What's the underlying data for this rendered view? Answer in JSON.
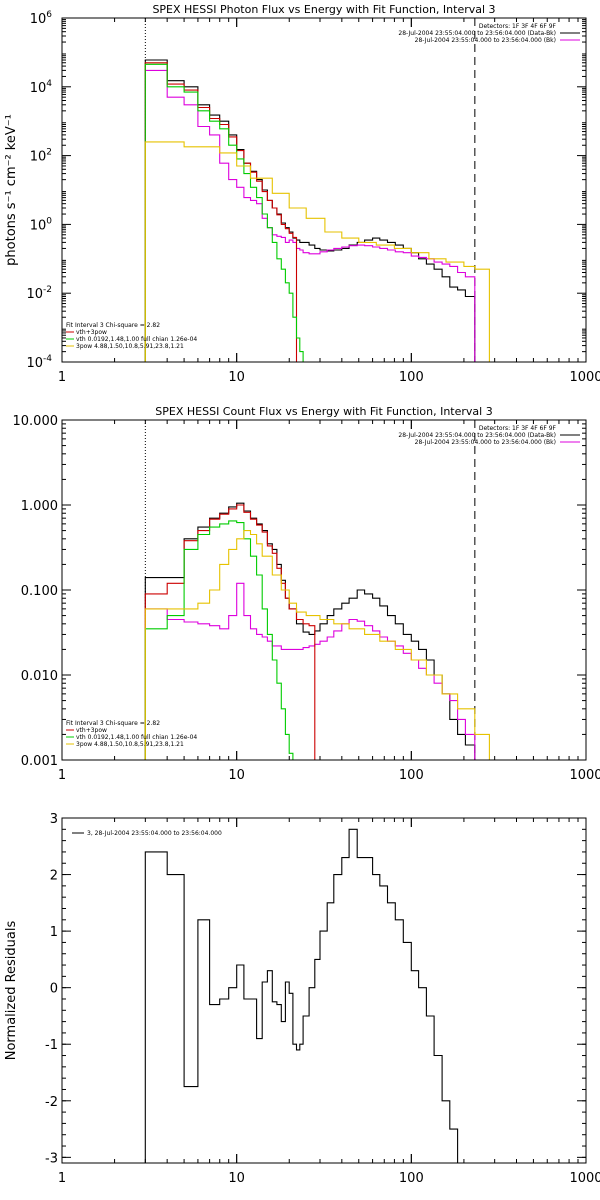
{
  "chart_data": [
    {
      "id": "photon",
      "type": "line",
      "title": "SPEX HESSI Photon Flux vs Energy with Fit Function, Interval 3",
      "xlabel": "",
      "ylabel": "photons s⁻¹ cm⁻² keV⁻¹",
      "xscale": "log",
      "yscale": "log",
      "xlim": [
        1,
        1000
      ],
      "ylim": [
        0.0001,
        1000000
      ],
      "xticks": [
        1,
        10,
        100,
        1000
      ],
      "xticklabels": [
        "1",
        "10",
        "100",
        "1000"
      ],
      "yticks": [
        0.0001,
        0.01,
        1,
        100,
        10000,
        1000000
      ],
      "yticklabels": [
        [
          "10",
          "-4"
        ],
        [
          "10",
          "-2"
        ],
        [
          "10",
          "0"
        ],
        [
          "10",
          "2"
        ],
        [
          "10",
          "4"
        ],
        [
          "10",
          "6"
        ]
      ],
      "vlines": [
        3,
        231
      ],
      "legend_top": [
        "Detectors: 1F 3F 4F 6F 9F",
        "28-Jul-2004 23:55:04.000 to 23:56:04.000 (Data-Bk)",
        "28-Jul-2004 23:55:04.000 to 23:56:04.000 (Bk)"
      ],
      "legend_bottom": [
        "Fit Interval 3   Chi-square = 2.82",
        "vth+3pow",
        "vth 0.0192,1.48,1.00  full chian 1.26e-04",
        "3pow 4.88,1.50,10.8,5.91,23.8,1.21"
      ],
      "series": [
        {
          "name": "Data-Bk",
          "color": "#000000",
          "edges": [
            3,
            4,
            5,
            6,
            7,
            8,
            9,
            10,
            11,
            12,
            13,
            14,
            15,
            16,
            17,
            18,
            19,
            20,
            21,
            22,
            23,
            24,
            26,
            28,
            30,
            33,
            36,
            40,
            44,
            49,
            54,
            60,
            66,
            73,
            81,
            90,
            100,
            110,
            122,
            135,
            150,
            166,
            184,
            204,
            231
          ],
          "values": [
            60000,
            15000,
            10000,
            3000,
            1500,
            1000,
            400,
            150,
            60,
            35,
            20,
            10,
            5,
            3,
            2,
            1.1,
            0.8,
            0.6,
            0.4,
            0.35,
            0.3,
            0.3,
            0.25,
            0.2,
            0.18,
            0.17,
            0.18,
            0.2,
            0.25,
            0.3,
            0.35,
            0.4,
            0.35,
            0.3,
            0.25,
            0.2,
            0.15,
            0.1,
            0.07,
            0.05,
            0.03,
            0.015,
            0.0125,
            0.008
          ]
        },
        {
          "name": "Bk",
          "color": "#dd00dd",
          "edges": [
            3,
            4,
            5,
            6,
            7,
            8,
            9,
            10,
            11,
            12,
            13,
            14,
            15,
            16,
            17,
            18,
            19,
            20,
            21,
            22,
            23,
            24,
            26,
            28,
            30,
            33,
            36,
            40,
            44,
            49,
            54,
            60,
            66,
            73,
            81,
            90,
            100,
            110,
            122,
            135,
            150,
            166,
            184,
            204,
            231
          ],
          "values": [
            30000,
            5000,
            3000,
            700,
            400,
            60,
            20,
            12,
            6,
            5,
            4,
            1.5,
            0.8,
            0.5,
            0.45,
            0.42,
            0.3,
            0.35,
            0.3,
            0.2,
            0.18,
            0.15,
            0.14,
            0.14,
            0.16,
            0.18,
            0.2,
            0.22,
            0.24,
            0.25,
            0.24,
            0.22,
            0.2,
            0.18,
            0.16,
            0.15,
            0.12,
            0.11,
            0.1,
            0.08,
            0.07,
            0.06,
            0.04,
            0.03
          ]
        },
        {
          "name": "vth+3pow",
          "color": "#cc0000",
          "edges": [
            3,
            4,
            5,
            6,
            7,
            8,
            9,
            10,
            11,
            12,
            13,
            14,
            15,
            16,
            17,
            18,
            19,
            20,
            21,
            22
          ],
          "values": [
            50000,
            12000,
            8000,
            2500,
            1200,
            800,
            350,
            140,
            60,
            33,
            18,
            9,
            5,
            3,
            1.9,
            1,
            0.75,
            0.55,
            0.42
          ]
        },
        {
          "name": "vth",
          "color": "#00cc00",
          "edges": [
            3,
            4,
            5,
            6,
            7,
            8,
            9,
            10,
            11,
            12,
            13,
            14,
            15,
            16,
            17,
            18,
            19,
            20,
            21,
            22,
            23,
            24,
            26,
            28
          ],
          "values": [
            45000,
            10000,
            7000,
            2000,
            1000,
            600,
            200,
            80,
            30,
            12,
            6,
            2,
            0.8,
            0.3,
            0.1,
            0.05,
            0.02,
            0.01,
            0.002,
            0.0005,
            0.0002,
            8e-05,
            1e-05
          ]
        },
        {
          "name": "3pow",
          "color": "#e6c200",
          "edges": [
            3,
            5,
            8,
            10,
            12,
            16,
            20,
            25,
            32,
            40,
            50,
            63,
            80,
            100,
            126,
            158,
            200,
            232,
            280
          ],
          "values": [
            250,
            180,
            120,
            50,
            22,
            8,
            3,
            1.5,
            0.6,
            0.4,
            0.3,
            0.25,
            0.2,
            0.15,
            0.1,
            0.08,
            0.06,
            0.05
          ]
        }
      ]
    },
    {
      "id": "count",
      "type": "line",
      "title": "SPEX HESSI Count Flux vs Energy with Fit Function, Interval 3",
      "xlabel": "",
      "ylabel": "",
      "xscale": "log",
      "yscale": "log",
      "xlim": [
        1,
        1000
      ],
      "ylim": [
        0.001,
        10
      ],
      "xticks": [
        1,
        10,
        100,
        1000
      ],
      "xticklabels": [
        "1",
        "10",
        "100",
        "1000"
      ],
      "yticks": [
        0.001,
        0.01,
        0.1,
        1,
        10
      ],
      "yticklabels": [
        [
          "0.001"
        ],
        [
          "0.010"
        ],
        [
          "0.100"
        ],
        [
          "1.000"
        ],
        [
          "10.000"
        ]
      ],
      "vlines": [
        3,
        231
      ],
      "legend_top": [
        "Detectors: 1F 3F 4F 6F 9F",
        "28-Jul-2004 23:55:04.000 to 23:56:04.000 (Data-Bk)",
        "28-Jul-2004 23:55:04.000 to 23:56:04.000 (Bk)"
      ],
      "legend_bottom": [
        "Fit Interval 3   Chi-square = 2.82",
        "vth+3pow",
        "vth 0.0192,1.48,1.00  full chian 1.26e-04",
        "3pow 4.88,1.50,10.8,5.91,23.8,1.21"
      ],
      "series": [
        {
          "name": "Data-Bk",
          "color": "#000000",
          "edges": [
            3,
            4,
            5,
            6,
            7,
            8,
            9,
            10,
            11,
            12,
            13,
            14,
            15,
            16,
            17,
            18,
            19,
            20,
            22,
            24,
            26,
            28,
            30,
            33,
            36,
            40,
            44,
            49,
            54,
            60,
            66,
            73,
            81,
            90,
            100,
            110,
            122,
            135,
            150,
            166,
            184,
            204,
            231
          ],
          "values": [
            0.14,
            0.14,
            0.4,
            0.55,
            0.7,
            0.8,
            0.95,
            1.05,
            0.85,
            0.7,
            0.6,
            0.5,
            0.35,
            0.3,
            0.2,
            0.13,
            0.08,
            0.06,
            0.04,
            0.032,
            0.03,
            0.033,
            0.04,
            0.05,
            0.06,
            0.07,
            0.08,
            0.1,
            0.09,
            0.08,
            0.065,
            0.05,
            0.04,
            0.03,
            0.025,
            0.02,
            0.015,
            0.01,
            0.006,
            0.003,
            0.002,
            0.0015
          ]
        },
        {
          "name": "Bk",
          "color": "#dd00dd",
          "edges": [
            3,
            4,
            5,
            6,
            7,
            8,
            9,
            10,
            11,
            12,
            13,
            14,
            15,
            16,
            18,
            20,
            22,
            24,
            26,
            28,
            30,
            33,
            36,
            40,
            44,
            49,
            54,
            60,
            66,
            73,
            81,
            90,
            100,
            110,
            122,
            135,
            150,
            166,
            184,
            204,
            231
          ],
          "values": [
            0.06,
            0.045,
            0.042,
            0.04,
            0.038,
            0.035,
            0.05,
            0.12,
            0.05,
            0.035,
            0.03,
            0.028,
            0.025,
            0.022,
            0.02,
            0.02,
            0.02,
            0.021,
            0.022,
            0.023,
            0.025,
            0.028,
            0.033,
            0.04,
            0.045,
            0.043,
            0.038,
            0.033,
            0.028,
            0.025,
            0.022,
            0.018,
            0.015,
            0.012,
            0.01,
            0.008,
            0.006,
            0.005,
            0.003,
            0.002
          ]
        },
        {
          "name": "vth+3pow",
          "color": "#cc0000",
          "edges": [
            3,
            4,
            5,
            6,
            7,
            8,
            9,
            10,
            11,
            12,
            13,
            14,
            15,
            16,
            17,
            18,
            19,
            20,
            22,
            24,
            26,
            28
          ],
          "values": [
            0.09,
            0.12,
            0.38,
            0.5,
            0.68,
            0.78,
            0.9,
            1.0,
            0.82,
            0.68,
            0.58,
            0.48,
            0.33,
            0.27,
            0.18,
            0.12,
            0.08,
            0.06,
            0.045,
            0.04,
            0.038
          ]
        },
        {
          "name": "vth",
          "color": "#00cc00",
          "edges": [
            3,
            4,
            5,
            6,
            7,
            8,
            9,
            10,
            11,
            12,
            13,
            14,
            15,
            16,
            17,
            18,
            19,
            20,
            21,
            22,
            23
          ],
          "values": [
            0.035,
            0.05,
            0.3,
            0.45,
            0.55,
            0.6,
            0.65,
            0.62,
            0.4,
            0.25,
            0.15,
            0.06,
            0.03,
            0.015,
            0.008,
            0.004,
            0.002,
            0.0012,
            0.0009,
            0.0006
          ]
        },
        {
          "name": "3pow",
          "color": "#e6c200",
          "edges": [
            3,
            5,
            6,
            7,
            8,
            9,
            10,
            11,
            12,
            13,
            14,
            16,
            18,
            20,
            22,
            25,
            30,
            36,
            44,
            54,
            66,
            81,
            100,
            122,
            150,
            184,
            231,
            280
          ],
          "values": [
            0.06,
            0.06,
            0.07,
            0.1,
            0.2,
            0.3,
            0.4,
            0.5,
            0.45,
            0.35,
            0.25,
            0.15,
            0.1,
            0.07,
            0.055,
            0.05,
            0.045,
            0.04,
            0.035,
            0.03,
            0.025,
            0.02,
            0.015,
            0.01,
            0.006,
            0.004,
            0.002
          ]
        }
      ]
    },
    {
      "id": "resid",
      "type": "line",
      "title": "",
      "xlabel": "",
      "ylabel": "Normalized Residuals",
      "xscale": "log",
      "yscale": "linear",
      "xlim": [
        1,
        1000
      ],
      "ylim": [
        -3.1,
        3
      ],
      "xticks": [
        1,
        10,
        100,
        1000
      ],
      "xticklabels": [
        "1",
        "10",
        "100",
        "1000"
      ],
      "yticks": [
        -3,
        -2,
        -1,
        0,
        1,
        2,
        3
      ],
      "yticklabels": [
        [
          "-3"
        ],
        [
          "-2"
        ],
        [
          "-1"
        ],
        [
          "0"
        ],
        [
          "1"
        ],
        [
          "2"
        ],
        [
          "3"
        ]
      ],
      "vlines": [],
      "legend_top": [
        "3, 28-Jul-2004 23:55:04.000 to 23:56:04.000"
      ],
      "legend_bottom": [],
      "series": [
        {
          "name": "3, 28-Jul-2004 23:55:04.000 to 23:56:04.000",
          "color": "#000000",
          "edges": [
            3,
            4,
            5,
            6,
            7,
            8,
            9,
            10,
            11,
            12,
            13,
            14,
            15,
            16,
            17,
            18,
            19,
            20,
            21,
            22,
            23,
            24,
            26,
            28,
            30,
            33,
            36,
            40,
            44,
            49,
            54,
            60,
            66,
            73,
            81,
            90,
            100,
            110,
            122,
            135,
            150,
            166,
            184,
            204,
            231
          ],
          "values": [
            2.4,
            2.0,
            -1.75,
            1.2,
            -0.3,
            -0.2,
            0.0,
            0.4,
            -0.2,
            -0.2,
            -0.9,
            0.1,
            0.3,
            -0.25,
            -0.3,
            -0.6,
            0.1,
            -0.1,
            -1.0,
            -1.1,
            -1.0,
            -0.5,
            0.0,
            0.5,
            1.0,
            1.5,
            2.0,
            2.3,
            2.8,
            2.3,
            2.3,
            2.0,
            1.8,
            1.5,
            1.2,
            0.8,
            0.3,
            0.0,
            -0.5,
            -1.2,
            -2.0,
            -2.5,
            -3.5,
            -3.5
          ]
        }
      ]
    }
  ]
}
